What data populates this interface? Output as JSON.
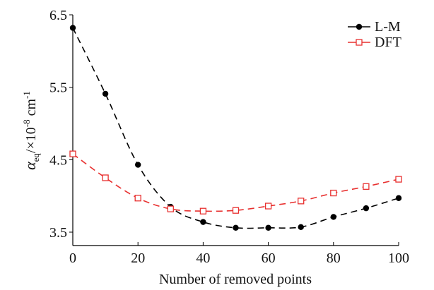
{
  "chart_data": {
    "type": "line",
    "title": "",
    "xlabel": "Number of removed points",
    "ylabel_main": "α",
    "ylabel_sub": "eq",
    "ylabel_unit": "/×10",
    "ylabel_exp": "-8",
    "ylabel_unit2": " cm",
    "ylabel_exp2": "-1",
    "xlim": [
      0,
      100
    ],
    "ylim": [
      3.3,
      6.5
    ],
    "xticks": [
      0,
      20,
      40,
      60,
      80,
      100
    ],
    "xtick_labels": [
      "0",
      "20",
      "40",
      "60",
      "80",
      "100"
    ],
    "yticks": [
      3.5,
      4.5,
      5.5,
      6.5
    ],
    "ytick_labels": [
      "3.5",
      "4.5",
      "5.5",
      "6.5"
    ],
    "grid": false,
    "legend_position": "top-right",
    "x": [
      0,
      10,
      20,
      30,
      40,
      50,
      60,
      70,
      80,
      90,
      100
    ],
    "series": [
      {
        "name": "L-M",
        "color": "#000000",
        "marker": "filled-circle",
        "values": [
          6.32,
          5.41,
          4.43,
          3.85,
          3.64,
          3.56,
          3.56,
          3.57,
          3.71,
          3.83,
          3.97
        ]
      },
      {
        "name": "DFT",
        "color": "#e8302f",
        "marker": "open-square",
        "values": [
          4.58,
          4.25,
          3.97,
          3.82,
          3.79,
          3.8,
          3.86,
          3.93,
          4.04,
          4.13,
          4.23
        ]
      }
    ]
  }
}
